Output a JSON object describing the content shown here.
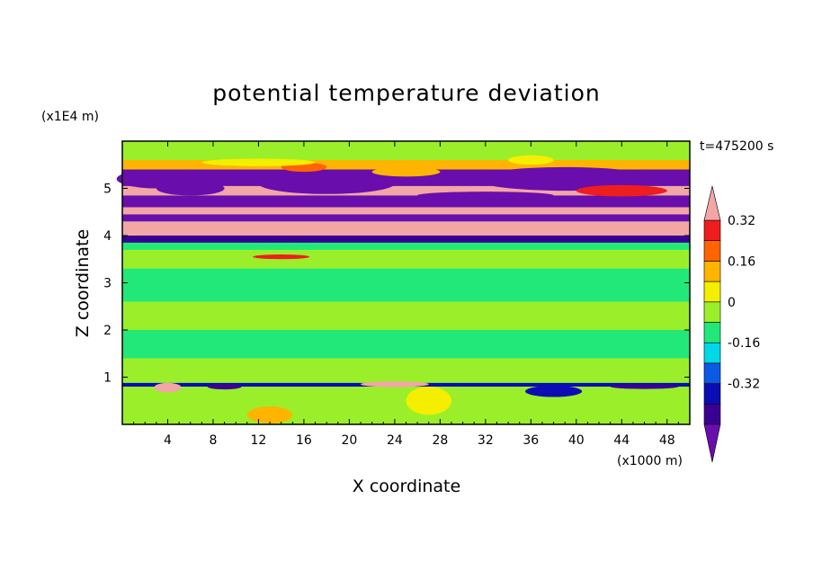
{
  "chart_data": {
    "type": "heatmap",
    "title": "potential temperature deviation",
    "xlabel": "X coordinate",
    "ylabel": "Z coordinate",
    "x_unit": "(x1000 m)",
    "y_unit": "(x1E4 m)",
    "time_label": "t=475200 s",
    "xlim": [
      0,
      50
    ],
    "ylim": [
      0,
      6
    ],
    "x_ticks": [
      "4",
      "8",
      "12",
      "16",
      "20",
      "24",
      "28",
      "32",
      "36",
      "40",
      "44",
      "48"
    ],
    "y_ticks": [
      "1",
      "2",
      "3",
      "4",
      "5"
    ],
    "x_tick_values": [
      4,
      8,
      12,
      16,
      20,
      24,
      28,
      32,
      36,
      40,
      44,
      48
    ],
    "y_tick_values": [
      1,
      2,
      3,
      4,
      5
    ],
    "colorbar": {
      "levels": [
        -0.48,
        -0.4,
        -0.32,
        -0.24,
        -0.16,
        -0.08,
        0,
        0.08,
        0.16,
        0.24,
        0.32,
        0.4
      ],
      "colors": [
        "#6a0dad",
        "#3a0094",
        "#0c0cb4",
        "#0a5ae6",
        "#00d8e8",
        "#22e87a",
        "#9aef2a",
        "#f4ee00",
        "#ffb400",
        "#ff6400",
        "#ee1e1e",
        "#f2a6a6"
      ],
      "labels": [
        "0.32",
        "0.16",
        "0",
        "-0.16",
        "-0.32"
      ],
      "label_values": [
        0.32,
        0.16,
        0,
        -0.16,
        -0.32
      ]
    },
    "bands": [
      {
        "z0": 0.0,
        "z1": 0.8,
        "value": 0.02
      },
      {
        "z0": 0.8,
        "z1": 0.88,
        "value": -0.3
      },
      {
        "z0": 0.88,
        "z1": 1.4,
        "value": 0.03
      },
      {
        "z0": 1.4,
        "z1": 2.0,
        "value": -0.02
      },
      {
        "z0": 2.0,
        "z1": 2.6,
        "value": 0.02
      },
      {
        "z0": 2.6,
        "z1": 3.3,
        "value": -0.03
      },
      {
        "z0": 3.3,
        "z1": 3.7,
        "value": 0.02
      },
      {
        "z0": 3.7,
        "z1": 3.85,
        "value": -0.02
      },
      {
        "z0": 3.85,
        "z1": 4.0,
        "value": -0.4
      },
      {
        "z0": 4.0,
        "z1": 4.3,
        "value": 0.45
      },
      {
        "z0": 4.3,
        "z1": 4.45,
        "value": -0.45
      },
      {
        "z0": 4.45,
        "z1": 4.6,
        "value": 0.45
      },
      {
        "z0": 4.6,
        "z1": 4.85,
        "value": -0.45
      },
      {
        "z0": 4.85,
        "z1": 5.05,
        "value": 0.45
      },
      {
        "z0": 5.05,
        "z1": 5.4,
        "value": -0.45
      },
      {
        "z0": 5.4,
        "z1": 5.6,
        "value": 0.2
      },
      {
        "z0": 5.6,
        "z1": 6.0,
        "value": 0.02
      }
    ],
    "features": [
      {
        "x": 4,
        "z": 0.78,
        "rx": 1.2,
        "rz": 0.1,
        "value": 0.45
      },
      {
        "x": 9,
        "z": 0.8,
        "rx": 1.5,
        "rz": 0.06,
        "value": -0.35
      },
      {
        "x": 13,
        "z": 0.2,
        "rx": 2.0,
        "rz": 0.18,
        "value": 0.18
      },
      {
        "x": 24,
        "z": 0.85,
        "rx": 3.0,
        "rz": 0.06,
        "value": 0.45
      },
      {
        "x": 27,
        "z": 0.5,
        "rx": 2.0,
        "rz": 0.3,
        "value": 0.15
      },
      {
        "x": 38,
        "z": 0.7,
        "rx": 2.5,
        "rz": 0.12,
        "value": -0.3
      },
      {
        "x": 46,
        "z": 0.8,
        "rx": 3.0,
        "rz": 0.05,
        "value": -0.35
      },
      {
        "x": 14,
        "z": 3.55,
        "rx": 2.5,
        "rz": 0.05,
        "value": 0.35
      },
      {
        "x": 3,
        "z": 5.2,
        "rx": 3.5,
        "rz": 0.2,
        "value": -0.45
      },
      {
        "x": 6,
        "z": 5.0,
        "rx": 3.0,
        "rz": 0.15,
        "value": -0.45
      },
      {
        "x": 18,
        "z": 5.1,
        "rx": 6.0,
        "rz": 0.22,
        "value": -0.45
      },
      {
        "x": 16,
        "z": 5.45,
        "rx": 2.0,
        "rz": 0.1,
        "value": 0.3
      },
      {
        "x": 25,
        "z": 5.35,
        "rx": 3.0,
        "rz": 0.1,
        "value": 0.2
      },
      {
        "x": 39,
        "z": 5.2,
        "rx": 8.0,
        "rz": 0.25,
        "value": -0.45
      },
      {
        "x": 44,
        "z": 4.95,
        "rx": 4.0,
        "rz": 0.12,
        "value": 0.35
      },
      {
        "x": 36,
        "z": 5.6,
        "rx": 2.0,
        "rz": 0.1,
        "value": 0.1
      },
      {
        "x": 12,
        "z": 5.55,
        "rx": 5.0,
        "rz": 0.08,
        "value": 0.1
      },
      {
        "x": 32,
        "z": 4.85,
        "rx": 6.0,
        "rz": 0.08,
        "value": -0.45
      }
    ]
  }
}
